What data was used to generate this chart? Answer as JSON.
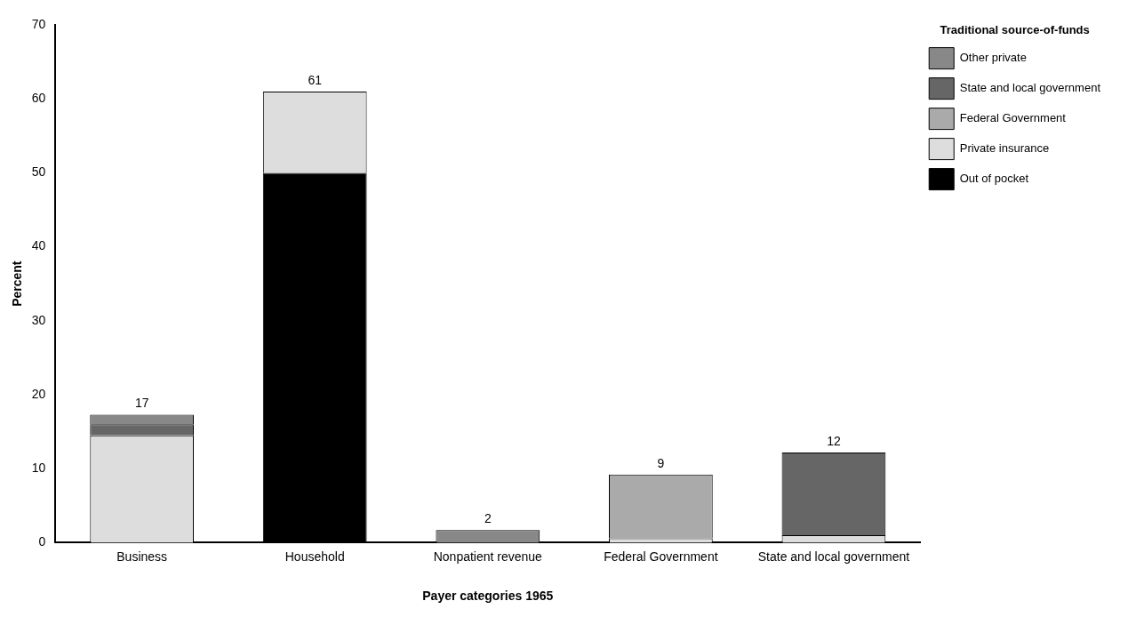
{
  "chart_data": {
    "type": "bar",
    "stacked": true,
    "xlabel": "Payer categories 1965",
    "ylabel": "Percent",
    "legend_title": "Traditional source-of-funds",
    "legend": "top right",
    "grid": false,
    "categories": [
      "Business",
      "Household",
      "Nonpatient revenue",
      "Federal Government",
      "State and local government"
    ],
    "ylim": [
      0,
      70
    ],
    "yticks": [
      0,
      10,
      20,
      30,
      40,
      50,
      60,
      70
    ],
    "series": [
      {
        "name": "Out of pocket",
        "color": "#000000",
        "values": [
          null,
          50,
          null,
          null,
          null
        ]
      },
      {
        "name": "Private insurance",
        "color": "#dddddd",
        "values": [
          14.5,
          11,
          null,
          0.6,
          1
        ]
      },
      {
        "name": "Federal Government",
        "color": "#aaaaaa",
        "values": [
          null,
          null,
          null,
          8.6,
          null
        ]
      },
      {
        "name": "State and local government",
        "color": "#666666",
        "values": [
          1.5,
          null,
          null,
          null,
          11.2
        ]
      },
      {
        "name": "Other private",
        "color": "#888888",
        "values": [
          1.3,
          null,
          1.7,
          null,
          null
        ]
      }
    ],
    "totals": [
      "17",
      "61",
      "2",
      "9",
      "12"
    ]
  }
}
